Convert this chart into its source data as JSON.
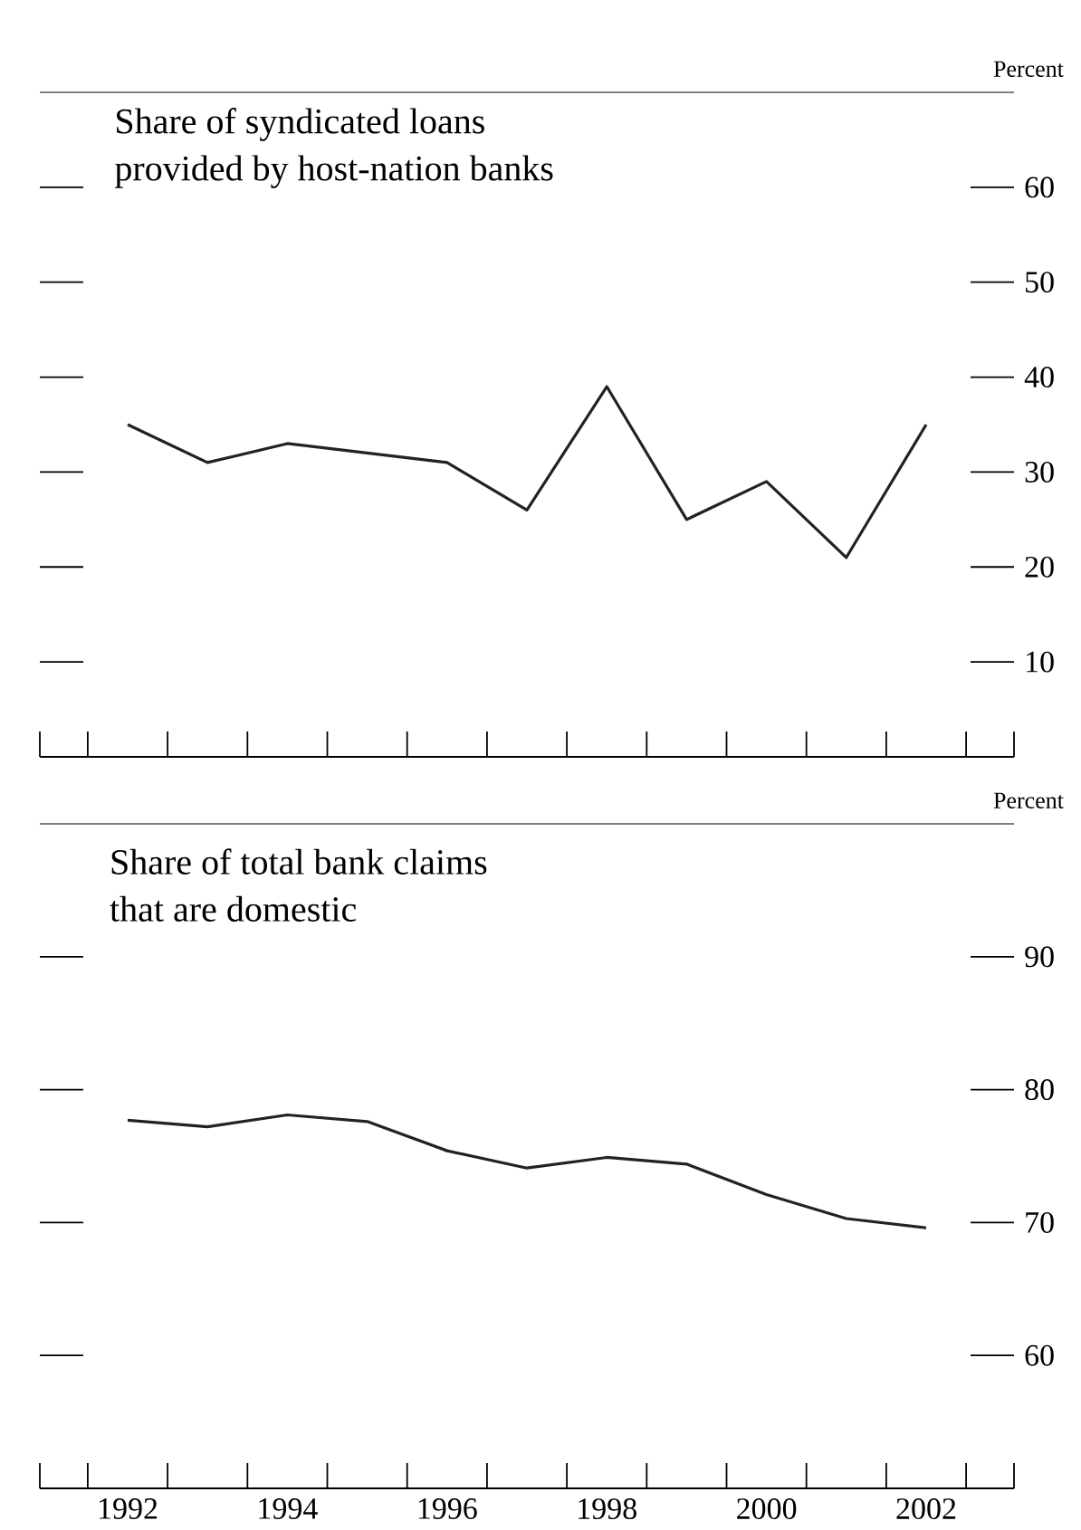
{
  "chart_data": [
    {
      "type": "line",
      "title": "Share of syndicated loans provided by host-nation banks",
      "ylabel": "Percent",
      "color": "#222222",
      "x": [
        1992,
        1993,
        1994,
        1995,
        1996,
        1997,
        1998,
        1999,
        2000,
        2001,
        2002
      ],
      "values": [
        35,
        31,
        33,
        32,
        31,
        26,
        39,
        25,
        29,
        21,
        35
      ],
      "xlim": [
        1990.9,
        2003.1
      ],
      "ylim": [
        0,
        70
      ],
      "xticks": [
        {
          "value": 1990.9,
          "label": null
        },
        {
          "value": 1991.5,
          "label": null
        },
        {
          "value": 1992.5,
          "label": null
        },
        {
          "value": 1993.5,
          "label": null
        },
        {
          "value": 1994.5,
          "label": null
        },
        {
          "value": 1995.5,
          "label": null
        },
        {
          "value": 1996.5,
          "label": null
        },
        {
          "value": 1997.5,
          "label": null
        },
        {
          "value": 1998.5,
          "label": null
        },
        {
          "value": 1999.5,
          "label": null
        },
        {
          "value": 2000.5,
          "label": null
        },
        {
          "value": 2001.5,
          "label": null
        },
        {
          "value": 2002.5,
          "label": null
        },
        {
          "value": 2003.1,
          "label": null
        }
      ],
      "yticks": [
        10,
        20,
        30,
        40,
        50,
        60
      ],
      "tick_labels": "y"
    },
    {
      "type": "line",
      "title": "Share of total bank claims that are domestic",
      "ylabel": "Percent",
      "color": "#222222",
      "x": [
        1992,
        1993,
        1994,
        1995,
        1996,
        1997,
        1998,
        1999,
        2000,
        2001,
        2002
      ],
      "values": [
        77.7,
        77.2,
        78.1,
        77.6,
        75.4,
        74.1,
        74.9,
        74.4,
        72.1,
        70.3,
        69.6
      ],
      "xlim": [
        1990.9,
        2003.1
      ],
      "ylim": [
        50,
        100
      ],
      "xticks": [
        {
          "value": 1990.9,
          "label": null
        },
        {
          "value": 1991.5,
          "label": null
        },
        1992,
        {
          "value": 1992.5,
          "label": null
        },
        {
          "value": 1993.5,
          "label": null
        },
        1994,
        {
          "value": 1994.5,
          "label": null
        },
        {
          "value": 1995.5,
          "label": null
        },
        1996,
        {
          "value": 1996.5,
          "label": null
        },
        {
          "value": 1997.5,
          "label": null
        },
        1998,
        {
          "value": 1998.5,
          "label": null
        },
        {
          "value": 1999.5,
          "label": null
        },
        2000,
        {
          "value": 2000.5,
          "label": null
        },
        {
          "value": 2001.5,
          "label": null
        },
        2002,
        {
          "value": 2002.5,
          "label": null
        },
        {
          "value": 2003.1,
          "label": null
        }
      ],
      "yticks": [
        60,
        70,
        80,
        90
      ]
    }
  ]
}
